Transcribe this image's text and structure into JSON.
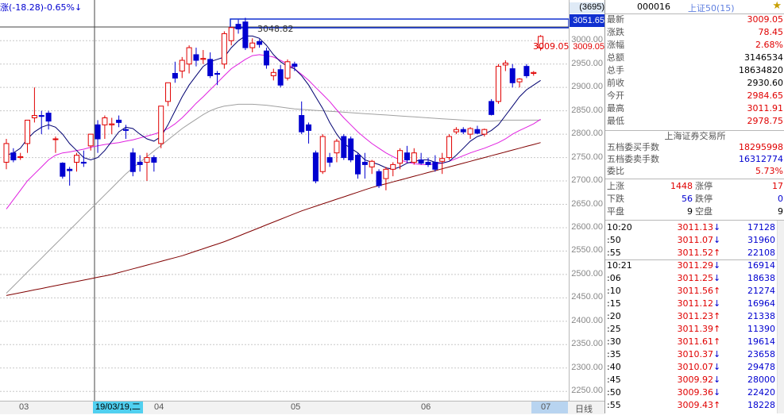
{
  "top_status": {
    "text": "涨(-18.28)-0.65%↓"
  },
  "chart": {
    "high_label": "3048.82",
    "crosshair_price": "3051.65",
    "crosshair_date": "19/03/19,二",
    "count_badge": "(3695)",
    "current_price_label": "3009.05"
  },
  "price_axis": [
    "3000.00",
    "2950.00",
    "2900.00",
    "2850.00",
    "2800.00",
    "2750.00",
    "2700.00",
    "2650.00",
    "2600.00",
    "2550.00",
    "2500.00",
    "2450.00",
    "2400.00",
    "2350.00",
    "2300.00",
    "2250.00"
  ],
  "date_axis": {
    "labels": [
      "03",
      "04",
      "05",
      "06",
      "07"
    ],
    "period": "日线"
  },
  "quote": {
    "code": "000016",
    "name": "上证50(15)",
    "rows": [
      {
        "k": "最新",
        "v": "3009.05",
        "c": "red"
      },
      {
        "k": "涨跌",
        "v": "78.45",
        "c": "red"
      },
      {
        "k": "涨幅",
        "v": "2.68%",
        "c": "red"
      },
      {
        "k": "总额",
        "v": "3146534",
        "c": "blk"
      },
      {
        "k": "总手",
        "v": "18634820",
        "c": "blk"
      },
      {
        "k": "前收",
        "v": "2930.60",
        "c": "blk"
      },
      {
        "k": "今开",
        "v": "2984.65",
        "c": "red"
      },
      {
        "k": "最高",
        "v": "3011.91",
        "c": "red"
      },
      {
        "k": "最低",
        "v": "2978.75",
        "c": "red"
      }
    ],
    "exchange": "上海证券交易所",
    "orders": [
      {
        "k": "五档委买手数",
        "v": "18295998",
        "c": "red"
      },
      {
        "k": "五档委卖手数",
        "v": "16312774",
        "c": "blue"
      },
      {
        "k": "委比",
        "v": "5.73%",
        "c": "red"
      }
    ],
    "breadth": [
      {
        "k": "上涨",
        "v": "1448",
        "k2": "涨停",
        "v2": "17"
      },
      {
        "k": "下跌",
        "v": "56",
        "k2": "跌停",
        "v2": "0"
      },
      {
        "k": "平盘",
        "v": "9",
        "k2": "空盘",
        "v2": "9"
      }
    ]
  },
  "ticks": [
    {
      "t": "10:20",
      "p": "3011.13",
      "a": "↓",
      "v": "17128"
    },
    {
      "t": ":50",
      "p": "3011.07",
      "a": "↓",
      "v": "31960"
    },
    {
      "t": ":55",
      "p": "3011.52",
      "a": "↑",
      "v": "22108"
    },
    {
      "t": "10:21",
      "p": "3011.29",
      "a": "↓",
      "v": "16914"
    },
    {
      "t": ":06",
      "p": "3011.25",
      "a": "↓",
      "v": "18638"
    },
    {
      "t": ":10",
      "p": "3011.56",
      "a": "↑",
      "v": "21274"
    },
    {
      "t": ":15",
      "p": "3011.12",
      "a": "↓",
      "v": "16964"
    },
    {
      "t": ":20",
      "p": "3011.23",
      "a": "↑",
      "v": "21338"
    },
    {
      "t": ":25",
      "p": "3011.39",
      "a": "↑",
      "v": "11390"
    },
    {
      "t": ":30",
      "p": "3011.61",
      "a": "↑",
      "v": "19614"
    },
    {
      "t": ":35",
      "p": "3010.37",
      "a": "↓",
      "v": "23658"
    },
    {
      "t": ":40",
      "p": "3010.07",
      "a": "↓",
      "v": "29478"
    },
    {
      "t": ":45",
      "p": "3009.92",
      "a": "↓",
      "v": "28000"
    },
    {
      "t": ":50",
      "p": "3009.36",
      "a": "↓",
      "v": "22420"
    },
    {
      "t": ":55",
      "p": "3009.43",
      "a": "↑",
      "v": "18228"
    }
  ],
  "colors": {
    "up": "#e00000",
    "down": "#0000d0",
    "ma5": "#000070",
    "ma10": "#e020e0",
    "ma20": "#a0a0a0",
    "ma60": "#800000",
    "grid": "#c8c8c8"
  },
  "chart_data": {
    "type": "candlestick",
    "ylim": [
      2230,
      3070
    ],
    "candles": [
      {
        "o": 2740,
        "h": 2790,
        "l": 2725,
        "c": 2780
      },
      {
        "o": 2760,
        "h": 2770,
        "l": 2740,
        "c": 2745
      },
      {
        "o": 2750,
        "h": 2760,
        "l": 2745,
        "c": 2752
      },
      {
        "o": 2780,
        "h": 2830,
        "l": 2760,
        "c": 2830
      },
      {
        "o": 2835,
        "h": 2900,
        "l": 2825,
        "c": 2840
      },
      {
        "o": 2840,
        "h": 2850,
        "l": 2800,
        "c": 2838
      },
      {
        "o": 2845,
        "h": 2850,
        "l": 2810,
        "c": 2828
      },
      {
        "o": 2790,
        "h": 2795,
        "l": 2760,
        "c": 2790
      },
      {
        "o": 2738,
        "h": 2740,
        "l": 2705,
        "c": 2710
      },
      {
        "o": 2725,
        "h": 2730,
        "l": 2690,
        "c": 2722
      },
      {
        "o": 2740,
        "h": 2760,
        "l": 2720,
        "c": 2755
      },
      {
        "o": 2740,
        "h": 2765,
        "l": 2730,
        "c": 2738
      },
      {
        "o": 2775,
        "h": 2800,
        "l": 2765,
        "c": 2800
      },
      {
        "o": 2820,
        "h": 2830,
        "l": 2760,
        "c": 2790
      },
      {
        "o": 2820,
        "h": 2840,
        "l": 2790,
        "c": 2835
      },
      {
        "o": 2820,
        "h": 2835,
        "l": 2800,
        "c": 2822
      },
      {
        "o": 2830,
        "h": 2840,
        "l": 2815,
        "c": 2825
      },
      {
        "o": 2810,
        "h": 2820,
        "l": 2790,
        "c": 2808
      },
      {
        "o": 2760,
        "h": 2770,
        "l": 2710,
        "c": 2720
      },
      {
        "o": 2740,
        "h": 2755,
        "l": 2720,
        "c": 2735
      },
      {
        "o": 2740,
        "h": 2760,
        "l": 2700,
        "c": 2750
      },
      {
        "o": 2750,
        "h": 2755,
        "l": 2720,
        "c": 2740
      },
      {
        "o": 2780,
        "h": 2860,
        "l": 2770,
        "c": 2860
      },
      {
        "o": 2870,
        "h": 2910,
        "l": 2860,
        "c": 2910
      },
      {
        "o": 2930,
        "h": 2955,
        "l": 2910,
        "c": 2920
      },
      {
        "o": 2935,
        "h": 2965,
        "l": 2920,
        "c": 2958
      },
      {
        "o": 2950,
        "h": 2990,
        "l": 2930,
        "c": 2985
      },
      {
        "o": 2970,
        "h": 2985,
        "l": 2945,
        "c": 2958
      },
      {
        "o": 2960,
        "h": 2980,
        "l": 2950,
        "c": 2962
      },
      {
        "o": 2960,
        "h": 2975,
        "l": 2920,
        "c": 2925
      },
      {
        "o": 2930,
        "h": 2935,
        "l": 2905,
        "c": 2928
      },
      {
        "o": 2950,
        "h": 3020,
        "l": 2940,
        "c": 3015
      },
      {
        "o": 3000,
        "h": 3030,
        "l": 2990,
        "c": 3028
      },
      {
        "o": 3035,
        "h": 3045,
        "l": 3015,
        "c": 3025
      },
      {
        "o": 3040,
        "h": 3049,
        "l": 2980,
        "c": 2985
      },
      {
        "o": 2985,
        "h": 3005,
        "l": 2975,
        "c": 2995
      },
      {
        "o": 2998,
        "h": 3003,
        "l": 2985,
        "c": 2992
      },
      {
        "o": 2978,
        "h": 2985,
        "l": 2940,
        "c": 2948
      },
      {
        "o": 2925,
        "h": 2940,
        "l": 2915,
        "c": 2932
      },
      {
        "o": 2938,
        "h": 2948,
        "l": 2900,
        "c": 2905
      },
      {
        "o": 2920,
        "h": 2960,
        "l": 2915,
        "c": 2955
      },
      {
        "o": 2950,
        "h": 2955,
        "l": 2935,
        "c": 2945
      },
      {
        "o": 2840,
        "h": 2870,
        "l": 2800,
        "c": 2805
      },
      {
        "o": 2820,
        "h": 2825,
        "l": 2780,
        "c": 2808
      },
      {
        "o": 2760,
        "h": 2765,
        "l": 2695,
        "c": 2700
      },
      {
        "o": 2720,
        "h": 2800,
        "l": 2715,
        "c": 2795
      },
      {
        "o": 2750,
        "h": 2760,
        "l": 2730,
        "c": 2740
      },
      {
        "o": 2760,
        "h": 2790,
        "l": 2740,
        "c": 2785
      },
      {
        "o": 2795,
        "h": 2800,
        "l": 2745,
        "c": 2750
      },
      {
        "o": 2790,
        "h": 2795,
        "l": 2740,
        "c": 2745
      },
      {
        "o": 2755,
        "h": 2760,
        "l": 2705,
        "c": 2715
      },
      {
        "o": 2740,
        "h": 2760,
        "l": 2705,
        "c": 2735
      },
      {
        "o": 2730,
        "h": 2745,
        "l": 2715,
        "c": 2742
      },
      {
        "o": 2720,
        "h": 2725,
        "l": 2685,
        "c": 2690
      },
      {
        "o": 2705,
        "h": 2730,
        "l": 2680,
        "c": 2725
      },
      {
        "o": 2725,
        "h": 2740,
        "l": 2710,
        "c": 2735
      },
      {
        "o": 2738,
        "h": 2770,
        "l": 2725,
        "c": 2765
      },
      {
        "o": 2760,
        "h": 2775,
        "l": 2740,
        "c": 2745
      },
      {
        "o": 2740,
        "h": 2770,
        "l": 2735,
        "c": 2760
      },
      {
        "o": 2745,
        "h": 2760,
        "l": 2735,
        "c": 2738
      },
      {
        "o": 2740,
        "h": 2750,
        "l": 2730,
        "c": 2735
      },
      {
        "o": 2740,
        "h": 2755,
        "l": 2720,
        "c": 2725
      },
      {
        "o": 2742,
        "h": 2760,
        "l": 2715,
        "c": 2748
      },
      {
        "o": 2750,
        "h": 2800,
        "l": 2745,
        "c": 2795
      },
      {
        "o": 2805,
        "h": 2815,
        "l": 2800,
        "c": 2810
      },
      {
        "o": 2810,
        "h": 2815,
        "l": 2800,
        "c": 2805
      },
      {
        "o": 2800,
        "h": 2815,
        "l": 2790,
        "c": 2812
      },
      {
        "o": 2810,
        "h": 2818,
        "l": 2800,
        "c": 2802
      },
      {
        "o": 2800,
        "h": 2812,
        "l": 2795,
        "c": 2810
      },
      {
        "o": 2870,
        "h": 2875,
        "l": 2840,
        "c": 2842
      },
      {
        "o": 2870,
        "h": 2950,
        "l": 2865,
        "c": 2945
      },
      {
        "o": 2948,
        "h": 2958,
        "l": 2935,
        "c": 2952
      },
      {
        "o": 2940,
        "h": 2950,
        "l": 2900,
        "c": 2910
      },
      {
        "o": 2912,
        "h": 2920,
        "l": 2900,
        "c": 2918
      },
      {
        "o": 2945,
        "h": 2950,
        "l": 2920,
        "c": 2925
      },
      {
        "o": 2930,
        "h": 2935,
        "l": 2925,
        "c": 2932
      },
      {
        "o": 2984.65,
        "h": 3011.91,
        "l": 2978.75,
        "c": 3009.05
      }
    ],
    "ma5": [
      2755,
      2760,
      2770,
      2790,
      2805,
      2815,
      2820,
      2815,
      2800,
      2780,
      2765,
      2750,
      2745,
      2750,
      2765,
      2785,
      2805,
      2815,
      2812,
      2800,
      2790,
      2785,
      2795,
      2820,
      2850,
      2880,
      2905,
      2925,
      2945,
      2955,
      2960,
      2965,
      2985,
      3000,
      3010,
      3010,
      3005,
      2990,
      2970,
      2955,
      2945,
      2940,
      2925,
      2905,
      2880,
      2855,
      2825,
      2800,
      2780,
      2770,
      2760,
      2745,
      2740,
      2735,
      2728,
      2725,
      2730,
      2738,
      2742,
      2745,
      2745,
      2740,
      2738,
      2742,
      2755,
      2770,
      2785,
      2795,
      2800,
      2808,
      2820,
      2840,
      2860,
      2880,
      2895,
      2905,
      2915
    ],
    "ma10": [
      2640,
      2660,
      2680,
      2700,
      2715,
      2730,
      2745,
      2755,
      2760,
      2762,
      2765,
      2768,
      2772,
      2775,
      2778,
      2780,
      2782,
      2785,
      2788,
      2792,
      2796,
      2800,
      2805,
      2812,
      2822,
      2835,
      2850,
      2866,
      2880,
      2895,
      2910,
      2925,
      2940,
      2950,
      2960,
      2968,
      2970,
      2968,
      2965,
      2958,
      2950,
      2940,
      2928,
      2915,
      2900,
      2885,
      2870,
      2852,
      2835,
      2820,
      2805,
      2792,
      2780,
      2770,
      2760,
      2752,
      2745,
      2740,
      2737,
      2735,
      2735,
      2736,
      2738,
      2742,
      2748,
      2754,
      2760,
      2765,
      2770,
      2776,
      2782,
      2790,
      2800,
      2808,
      2815,
      2822,
      2832
    ],
    "ma20": [
      2460,
      2475,
      2490,
      2505,
      2520,
      2535,
      2550,
      2565,
      2580,
      2595,
      2610,
      2625,
      2640,
      2655,
      2670,
      2685,
      2700,
      2715,
      2728,
      2740,
      2752,
      2764,
      2776,
      2788,
      2800,
      2812,
      2822,
      2832,
      2842,
      2850,
      2856,
      2860,
      2862,
      2864,
      2864,
      2864,
      2863,
      2862,
      2860,
      2858,
      2856,
      2854,
      2853,
      2852,
      2851,
      2850,
      2849,
      2848,
      2847,
      2846,
      2845,
      2844,
      2843,
      2842,
      2841,
      2840,
      2839,
      2838,
      2837,
      2836,
      2835,
      2834,
      2833,
      2832,
      2831,
      2830,
      2829,
      2828,
      2828,
      2828,
      2829,
      2830,
      2830,
      2830,
      2830,
      2830,
      2830
    ],
    "ma60": [
      2455,
      2458,
      2461,
      2464,
      2467,
      2470,
      2473,
      2476,
      2479,
      2482,
      2485,
      2488,
      2491,
      2494,
      2497,
      2500,
      2504,
      2508,
      2512,
      2516,
      2520,
      2524,
      2528,
      2532,
      2536,
      2540,
      2545,
      2550,
      2555,
      2560,
      2565,
      2570,
      2576,
      2582,
      2588,
      2594,
      2600,
      2606,
      2612,
      2618,
      2624,
      2630,
      2636,
      2641,
      2646,
      2651,
      2656,
      2661,
      2666,
      2671,
      2676,
      2681,
      2686,
      2690,
      2694,
      2698,
      2702,
      2706,
      2710,
      2714,
      2718,
      2722,
      2726,
      2730,
      2734,
      2738,
      2742,
      2746,
      2750,
      2754,
      2758,
      2762,
      2766,
      2770,
      2774,
      2778,
      2782
    ]
  }
}
